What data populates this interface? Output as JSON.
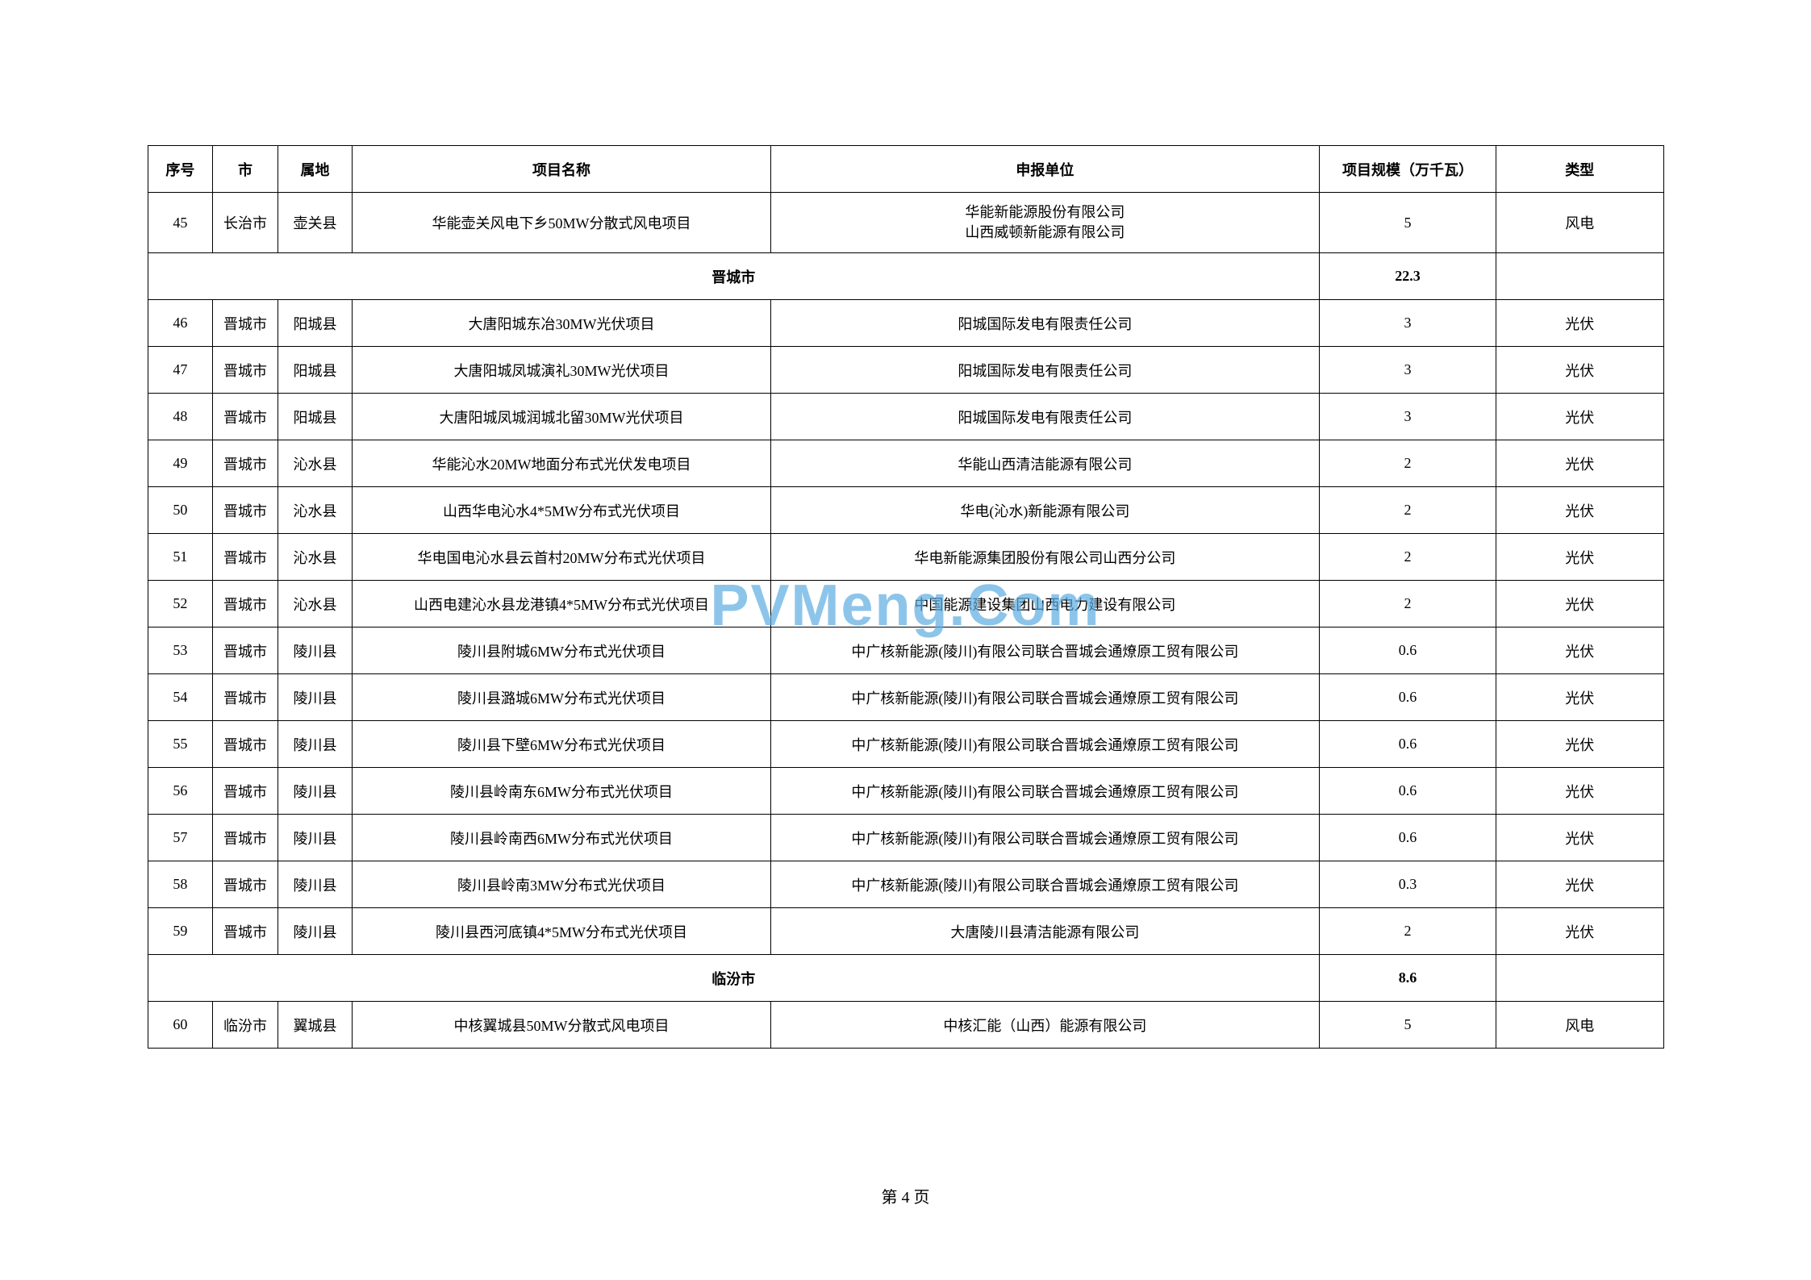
{
  "watermark": "PVMeng.Com",
  "page_footer": "第 4 页",
  "table": {
    "headers": {
      "seq": "序号",
      "city": "市",
      "area": "属地",
      "project": "项目名称",
      "unit": "申报单位",
      "scale": "项目规模（万千瓦）",
      "type": "类型"
    },
    "column_widths": {
      "seq": 70,
      "city": 70,
      "area": 80,
      "project": 450,
      "unit": 590,
      "scale": 190,
      "type": 180
    },
    "rows": [
      {
        "seq": "45",
        "city": "长治市",
        "area": "壶关县",
        "project": "华能壶关风电下乡50MW分散式风电项目",
        "unit_line1": "华能新能源股份有限公司",
        "unit_line2": "山西威顿新能源有限公司",
        "scale": "5",
        "type": "风电",
        "is_section": false,
        "multi_line_unit": true
      },
      {
        "section_title": "晋城市",
        "scale": "22.3",
        "is_section": true
      },
      {
        "seq": "46",
        "city": "晋城市",
        "area": "阳城县",
        "project": "大唐阳城东冶30MW光伏项目",
        "unit": "阳城国际发电有限责任公司",
        "scale": "3",
        "type": "光伏",
        "is_section": false
      },
      {
        "seq": "47",
        "city": "晋城市",
        "area": "阳城县",
        "project": "大唐阳城凤城演礼30MW光伏项目",
        "unit": "阳城国际发电有限责任公司",
        "scale": "3",
        "type": "光伏",
        "is_section": false
      },
      {
        "seq": "48",
        "city": "晋城市",
        "area": "阳城县",
        "project": "大唐阳城凤城润城北留30MW光伏项目",
        "unit": "阳城国际发电有限责任公司",
        "scale": "3",
        "type": "光伏",
        "is_section": false
      },
      {
        "seq": "49",
        "city": "晋城市",
        "area": "沁水县",
        "project": "华能沁水20MW地面分布式光伏发电项目",
        "unit": "华能山西清洁能源有限公司",
        "scale": "2",
        "type": "光伏",
        "is_section": false
      },
      {
        "seq": "50",
        "city": "晋城市",
        "area": "沁水县",
        "project": "山西华电沁水4*5MW分布式光伏项目",
        "unit": "华电(沁水)新能源有限公司",
        "scale": "2",
        "type": "光伏",
        "is_section": false
      },
      {
        "seq": "51",
        "city": "晋城市",
        "area": "沁水县",
        "project": "华电国电沁水县云首村20MW分布式光伏项目",
        "unit": "华电新能源集团股份有限公司山西分公司",
        "scale": "2",
        "type": "光伏",
        "is_section": false
      },
      {
        "seq": "52",
        "city": "晋城市",
        "area": "沁水县",
        "project": "山西电建沁水县龙港镇4*5MW分布式光伏项目",
        "unit": "中国能源建设集团山西电力建设有限公司",
        "scale": "2",
        "type": "光伏",
        "is_section": false
      },
      {
        "seq": "53",
        "city": "晋城市",
        "area": "陵川县",
        "project": "陵川县附城6MW分布式光伏项目",
        "unit": "中广核新能源(陵川)有限公司联合晋城会通燎原工贸有限公司",
        "scale": "0.6",
        "type": "光伏",
        "is_section": false
      },
      {
        "seq": "54",
        "city": "晋城市",
        "area": "陵川县",
        "project": "陵川县潞城6MW分布式光伏项目",
        "unit": "中广核新能源(陵川)有限公司联合晋城会通燎原工贸有限公司",
        "scale": "0.6",
        "type": "光伏",
        "is_section": false
      },
      {
        "seq": "55",
        "city": "晋城市",
        "area": "陵川县",
        "project": "陵川县下壁6MW分布式光伏项目",
        "unit": "中广核新能源(陵川)有限公司联合晋城会通燎原工贸有限公司",
        "scale": "0.6",
        "type": "光伏",
        "is_section": false
      },
      {
        "seq": "56",
        "city": "晋城市",
        "area": "陵川县",
        "project": "陵川县岭南东6MW分布式光伏项目",
        "unit": "中广核新能源(陵川)有限公司联合晋城会通燎原工贸有限公司",
        "scale": "0.6",
        "type": "光伏",
        "is_section": false
      },
      {
        "seq": "57",
        "city": "晋城市",
        "area": "陵川县",
        "project": "陵川县岭南西6MW分布式光伏项目",
        "unit": "中广核新能源(陵川)有限公司联合晋城会通燎原工贸有限公司",
        "scale": "0.6",
        "type": "光伏",
        "is_section": false
      },
      {
        "seq": "58",
        "city": "晋城市",
        "area": "陵川县",
        "project": "陵川县岭南3MW分布式光伏项目",
        "unit": "中广核新能源(陵川)有限公司联合晋城会通燎原工贸有限公司",
        "scale": "0.3",
        "type": "光伏",
        "is_section": false
      },
      {
        "seq": "59",
        "city": "晋城市",
        "area": "陵川县",
        "project": "陵川县西河底镇4*5MW分布式光伏项目",
        "unit": "大唐陵川县清洁能源有限公司",
        "scale": "2",
        "type": "光伏",
        "is_section": false
      },
      {
        "section_title": "临汾市",
        "scale": "8.6",
        "is_section": true
      },
      {
        "seq": "60",
        "city": "临汾市",
        "area": "翼城县",
        "project": "中核翼城县50MW分散式风电项目",
        "unit": "中核汇能（山西）能源有限公司",
        "scale": "5",
        "type": "风电",
        "is_section": false
      }
    ]
  }
}
